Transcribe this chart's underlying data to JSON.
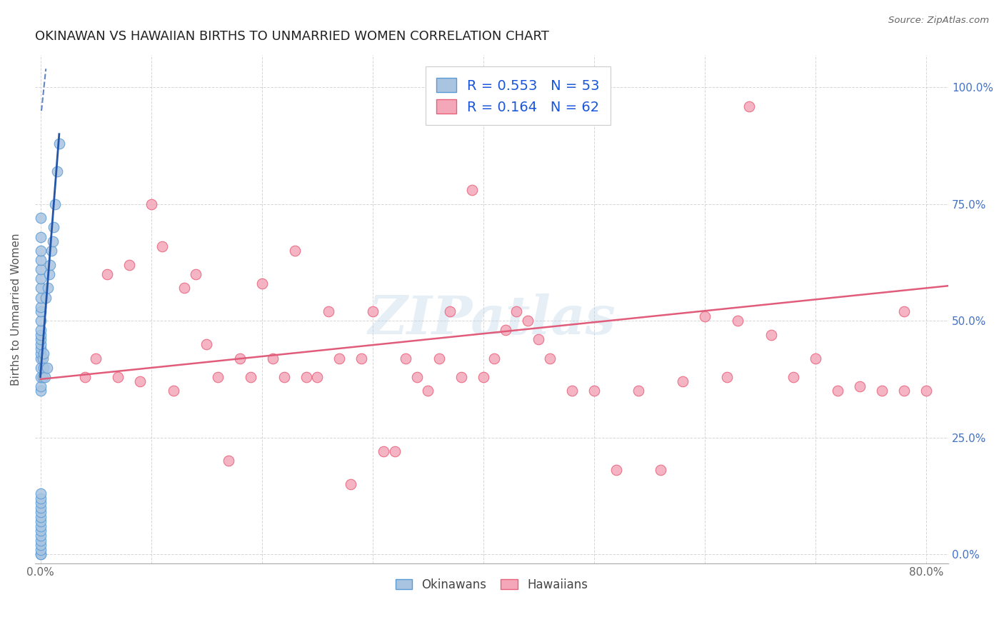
{
  "title": "OKINAWAN VS HAWAIIAN BIRTHS TO UNMARRIED WOMEN CORRELATION CHART",
  "source": "Source: ZipAtlas.com",
  "ylabel": "Births to Unmarried Women",
  "xlim": [
    -0.005,
    0.82
  ],
  "ylim": [
    -0.02,
    1.07
  ],
  "x_tick_positions": [
    0.0,
    0.1,
    0.2,
    0.3,
    0.4,
    0.5,
    0.6,
    0.7,
    0.8
  ],
  "x_tick_labels": [
    "0.0%",
    "",
    "",
    "",
    "",
    "",
    "",
    "",
    "80.0%"
  ],
  "y_tick_positions": [
    0.0,
    0.25,
    0.5,
    0.75,
    1.0
  ],
  "y_tick_labels_right": [
    "0.0%",
    "25.0%",
    "50.0%",
    "75.0%",
    "100.0%"
  ],
  "okinawan_color": "#a8c4e0",
  "okinawan_edge": "#5b9bd5",
  "hawaiian_color": "#f4a7b9",
  "hawaiian_edge": "#e8607a",
  "trend_okinawan_color": "#2255aa",
  "trend_hawaiian_color": "#e05c7a",
  "legend_R1": "0.553",
  "legend_N1": "53",
  "legend_R2": "0.164",
  "legend_N2": "62",
  "watermark": "ZIPatlas",
  "okinawan_x": [
    0.0,
    0.0,
    0.0,
    0.0,
    0.0,
    0.0,
    0.0,
    0.0,
    0.0,
    0.0,
    0.0,
    0.0,
    0.0,
    0.0,
    0.0,
    0.0,
    0.0,
    0.0,
    0.0,
    0.0,
    0.0,
    0.0,
    0.0,
    0.0,
    0.0,
    0.0,
    0.0,
    0.0,
    0.0,
    0.0,
    0.0,
    0.0,
    0.0,
    0.0,
    0.0,
    0.0,
    0.0,
    0.002,
    0.002,
    0.003,
    0.003,
    0.004,
    0.005,
    0.006,
    0.007,
    0.008,
    0.009,
    0.01,
    0.011,
    0.012,
    0.013,
    0.015,
    0.017
  ],
  "okinawan_y": [
    0.0,
    0.0,
    0.01,
    0.02,
    0.03,
    0.04,
    0.05,
    0.06,
    0.07,
    0.08,
    0.09,
    0.1,
    0.11,
    0.12,
    0.13,
    0.35,
    0.36,
    0.38,
    0.4,
    0.42,
    0.43,
    0.44,
    0.45,
    0.46,
    0.47,
    0.48,
    0.5,
    0.52,
    0.53,
    0.55,
    0.57,
    0.59,
    0.61,
    0.63,
    0.65,
    0.68,
    0.72,
    0.38,
    0.42,
    0.4,
    0.43,
    0.38,
    0.55,
    0.4,
    0.57,
    0.6,
    0.62,
    0.65,
    0.67,
    0.7,
    0.75,
    0.82,
    0.88
  ],
  "hawaiian_x": [
    0.04,
    0.05,
    0.06,
    0.07,
    0.08,
    0.09,
    0.1,
    0.11,
    0.12,
    0.13,
    0.14,
    0.15,
    0.16,
    0.17,
    0.18,
    0.19,
    0.2,
    0.21,
    0.22,
    0.23,
    0.24,
    0.25,
    0.26,
    0.27,
    0.28,
    0.29,
    0.3,
    0.31,
    0.32,
    0.33,
    0.34,
    0.35,
    0.36,
    0.37,
    0.38,
    0.39,
    0.4,
    0.41,
    0.42,
    0.43,
    0.44,
    0.45,
    0.46,
    0.48,
    0.5,
    0.52,
    0.54,
    0.56,
    0.58,
    0.6,
    0.62,
    0.64,
    0.66,
    0.68,
    0.7,
    0.72,
    0.74,
    0.76,
    0.78,
    0.8,
    0.63,
    0.78
  ],
  "hawaiian_y": [
    0.38,
    0.42,
    0.6,
    0.38,
    0.62,
    0.37,
    0.75,
    0.66,
    0.35,
    0.57,
    0.6,
    0.45,
    0.38,
    0.2,
    0.42,
    0.38,
    0.58,
    0.42,
    0.38,
    0.65,
    0.38,
    0.38,
    0.52,
    0.42,
    0.15,
    0.42,
    0.52,
    0.22,
    0.22,
    0.42,
    0.38,
    0.35,
    0.42,
    0.52,
    0.38,
    0.78,
    0.38,
    0.42,
    0.48,
    0.52,
    0.5,
    0.46,
    0.42,
    0.35,
    0.35,
    0.18,
    0.35,
    0.18,
    0.37,
    0.51,
    0.38,
    0.96,
    0.47,
    0.38,
    0.42,
    0.35,
    0.36,
    0.35,
    0.52,
    0.35,
    0.5,
    0.35
  ],
  "ok_trend_x0": 0.0,
  "ok_trend_y0": 0.38,
  "ok_trend_x1": 0.017,
  "ok_trend_y1": 0.9,
  "ok_trend_dash_x0": 0.0,
  "ok_trend_dash_y0": 1.05,
  "ok_trend_dash_x1": 0.012,
  "ok_trend_dash_y1": 1.05,
  "hw_trend_x0": 0.0,
  "hw_trend_y0": 0.375,
  "hw_trend_x1": 0.82,
  "hw_trend_y1": 0.575
}
